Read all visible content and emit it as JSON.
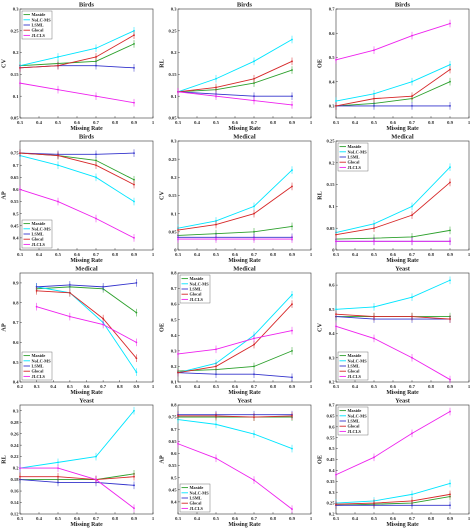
{
  "legend_labels": [
    "Maxide",
    "NoLC-MS",
    "LSML",
    "Glocal",
    "JLCLS"
  ],
  "colors": {
    "Maxide": "#2ca02c",
    "NoLC-MS": "#00e5ff",
    "LSML": "#3333cc",
    "Glocal": "#d62728",
    "JLCLS": "#ee22ee"
  },
  "chart_data": [
    {
      "type": "line",
      "title": "Birds",
      "xlabel": "Missing Rate",
      "ylabel": "CV",
      "x": [
        0.3,
        0.5,
        0.7,
        0.9
      ],
      "xlim": [
        0.3,
        1
      ],
      "ylim": [
        0.05,
        0.3
      ],
      "xticks": [
        "0.3",
        "0.4",
        "0.5",
        "0.6",
        "0.7",
        "0.8",
        "0.9",
        "1"
      ],
      "yticks": [
        "0.05",
        "0.1",
        "0.15",
        "0.2",
        "0.25",
        "0.3"
      ],
      "legend": "top-left",
      "grid": false,
      "series": [
        {
          "name": "Maxide",
          "values": [
            0.17,
            0.175,
            0.18,
            0.22
          ]
        },
        {
          "name": "NoLC-MS",
          "values": [
            0.17,
            0.19,
            0.21,
            0.25
          ]
        },
        {
          "name": "LSML",
          "values": [
            0.165,
            0.17,
            0.17,
            0.165
          ]
        },
        {
          "name": "Glocal",
          "values": [
            0.165,
            0.17,
            0.19,
            0.24
          ]
        },
        {
          "name": "JLCLS",
          "values": [
            0.13,
            0.115,
            0.1,
            0.085
          ]
        }
      ]
    },
    {
      "type": "line",
      "title": "Birds",
      "xlabel": "Missing Rate",
      "ylabel": "RL",
      "x": [
        0.3,
        0.5,
        0.7,
        0.9
      ],
      "xlim": [
        0.3,
        1
      ],
      "ylim": [
        0.05,
        0.3
      ],
      "xticks": [
        "0.3",
        "0.4",
        "0.5",
        "0.6",
        "0.7",
        "0.8",
        "0.9",
        "1"
      ],
      "yticks": [
        "0.05",
        "0.1",
        "0.15",
        "0.2",
        "0.25",
        "0.3"
      ],
      "legend": "none",
      "grid": false,
      "series": [
        {
          "name": "Maxide",
          "values": [
            0.11,
            0.115,
            0.13,
            0.16
          ]
        },
        {
          "name": "NoLC-MS",
          "values": [
            0.11,
            0.14,
            0.18,
            0.23
          ]
        },
        {
          "name": "LSML",
          "values": [
            0.11,
            0.105,
            0.1,
            0.1
          ]
        },
        {
          "name": "Glocal",
          "values": [
            0.11,
            0.12,
            0.14,
            0.18
          ]
        },
        {
          "name": "JLCLS",
          "values": [
            0.11,
            0.1,
            0.09,
            0.08
          ]
        }
      ]
    },
    {
      "type": "line",
      "title": "Birds",
      "xlabel": "Missing Rate",
      "ylabel": "OE",
      "x": [
        0.3,
        0.5,
        0.7,
        0.9
      ],
      "xlim": [
        0.3,
        1
      ],
      "ylim": [
        0.25,
        0.7
      ],
      "xticks": [
        "0.3",
        "0.4",
        "0.5",
        "0.6",
        "0.7",
        "0.8",
        "0.9",
        "1"
      ],
      "yticks": [
        "0.3",
        "0.4",
        "0.5",
        "0.6",
        "0.7"
      ],
      "legend": "none",
      "grid": false,
      "series": [
        {
          "name": "Maxide",
          "values": [
            0.3,
            0.31,
            0.33,
            0.4
          ]
        },
        {
          "name": "NoLC-MS",
          "values": [
            0.32,
            0.35,
            0.4,
            0.47
          ]
        },
        {
          "name": "LSML",
          "values": [
            0.3,
            0.3,
            0.3,
            0.3
          ]
        },
        {
          "name": "Glocal",
          "values": [
            0.3,
            0.33,
            0.34,
            0.45
          ]
        },
        {
          "name": "JLCLS",
          "values": [
            0.49,
            0.53,
            0.59,
            0.64
          ]
        }
      ]
    },
    {
      "type": "line",
      "title": "Birds",
      "xlabel": "Missing Rate",
      "ylabel": "AP",
      "x": [
        0.3,
        0.5,
        0.7,
        0.9
      ],
      "xlim": [
        0.3,
        1
      ],
      "ylim": [
        0.35,
        0.8
      ],
      "xticks": [
        "0.3",
        "0.4",
        "0.5",
        "0.6",
        "0.7",
        "0.8",
        "0.9",
        "1"
      ],
      "yticks": [
        "0.4",
        "0.45",
        "0.5",
        "0.55",
        "0.6",
        "0.65",
        "0.7",
        "0.75"
      ],
      "legend": "bottom-left",
      "grid": false,
      "series": [
        {
          "name": "Maxide",
          "values": [
            0.75,
            0.74,
            0.72,
            0.64
          ]
        },
        {
          "name": "NoLC-MS",
          "values": [
            0.74,
            0.7,
            0.65,
            0.55
          ]
        },
        {
          "name": "LSML",
          "values": [
            0.75,
            0.745,
            0.745,
            0.75
          ]
        },
        {
          "name": "Glocal",
          "values": [
            0.75,
            0.74,
            0.7,
            0.62
          ]
        },
        {
          "name": "JLCLS",
          "values": [
            0.6,
            0.55,
            0.48,
            0.4
          ]
        }
      ]
    },
    {
      "type": "line",
      "title": "Medical",
      "xlabel": "Missing Rate",
      "ylabel": "CV",
      "x": [
        0.3,
        0.5,
        0.7,
        0.9
      ],
      "xlim": [
        0.3,
        1
      ],
      "ylim": [
        0,
        0.3
      ],
      "xticks": [
        "0.3",
        "0.4",
        "0.5",
        "0.6",
        "0.7",
        "0.8",
        "0.9",
        "1"
      ],
      "yticks": [
        "0",
        "0.05",
        "0.1",
        "0.15",
        "0.2",
        "0.25",
        "0.3"
      ],
      "legend": "none",
      "grid": false,
      "series": [
        {
          "name": "Maxide",
          "values": [
            0.04,
            0.045,
            0.05,
            0.065
          ]
        },
        {
          "name": "NoLC-MS",
          "values": [
            0.06,
            0.08,
            0.12,
            0.22
          ]
        },
        {
          "name": "LSML",
          "values": [
            0.035,
            0.035,
            0.035,
            0.035
          ]
        },
        {
          "name": "Glocal",
          "values": [
            0.055,
            0.07,
            0.1,
            0.175
          ]
        },
        {
          "name": "JLCLS",
          "values": [
            0.03,
            0.03,
            0.03,
            0.03
          ]
        }
      ]
    },
    {
      "type": "line",
      "title": "Medical",
      "xlabel": "Missing Rate",
      "ylabel": "RL",
      "x": [
        0.3,
        0.5,
        0.7,
        0.9
      ],
      "xlim": [
        0.3,
        1
      ],
      "ylim": [
        0,
        0.25
      ],
      "xticks": [
        "0.3",
        "0.4",
        "0.5",
        "0.6",
        "0.7",
        "0.8",
        "0.9",
        "1"
      ],
      "yticks": [
        "0",
        "0.05",
        "0.1",
        "0.15",
        "0.2",
        "0.25"
      ],
      "legend": "top-left",
      "grid": false,
      "series": [
        {
          "name": "Maxide",
          "values": [
            0.025,
            0.027,
            0.03,
            0.045
          ]
        },
        {
          "name": "NoLC-MS",
          "values": [
            0.04,
            0.06,
            0.1,
            0.19
          ]
        },
        {
          "name": "LSML",
          "values": [
            0.02,
            0.02,
            0.02,
            0.02
          ]
        },
        {
          "name": "Glocal",
          "values": [
            0.035,
            0.05,
            0.08,
            0.155
          ]
        },
        {
          "name": "JLCLS",
          "values": [
            0.02,
            0.02,
            0.02,
            0.02
          ]
        }
      ]
    },
    {
      "type": "line",
      "title": "Medical",
      "xlabel": "Missing Rate",
      "ylabel": "AP",
      "x": [
        0.3,
        0.5,
        0.7,
        0.9
      ],
      "xlim": [
        0.2,
        1
      ],
      "ylim": [
        0.4,
        0.95
      ],
      "xticks": [
        "0.2",
        "0.3",
        "0.4",
        "0.5",
        "0.6",
        "0.7",
        "0.8",
        "0.9",
        "1"
      ],
      "yticks": [
        "0.4",
        "0.5",
        "0.6",
        "0.7",
        "0.8",
        "0.9"
      ],
      "legend": "bottom-left",
      "grid": false,
      "series": [
        {
          "name": "Maxide",
          "values": [
            0.87,
            0.88,
            0.87,
            0.75
          ]
        },
        {
          "name": "NoLC-MS",
          "values": [
            0.88,
            0.85,
            0.7,
            0.45
          ]
        },
        {
          "name": "LSML",
          "values": [
            0.88,
            0.89,
            0.88,
            0.9
          ]
        },
        {
          "name": "Glocal",
          "values": [
            0.86,
            0.85,
            0.72,
            0.52
          ]
        },
        {
          "name": "JLCLS",
          "values": [
            0.78,
            0.73,
            0.69,
            0.6
          ]
        }
      ]
    },
    {
      "type": "line",
      "title": "Medical",
      "xlabel": "Missing Rate",
      "ylabel": "OE",
      "x": [
        0.3,
        0.5,
        0.7,
        0.9
      ],
      "xlim": [
        0.3,
        1
      ],
      "ylim": [
        0.1,
        0.8
      ],
      "xticks": [
        "0.3",
        "0.4",
        "0.5",
        "0.6",
        "0.7",
        "0.8",
        "0.9",
        "1"
      ],
      "yticks": [
        "0.1",
        "0.2",
        "0.3",
        "0.4",
        "0.5",
        "0.6",
        "0.7",
        "0.8"
      ],
      "legend": "top-left",
      "grid": false,
      "series": [
        {
          "name": "Maxide",
          "values": [
            0.17,
            0.18,
            0.2,
            0.3
          ]
        },
        {
          "name": "NoLC-MS",
          "values": [
            0.16,
            0.22,
            0.4,
            0.66
          ]
        },
        {
          "name": "LSML",
          "values": [
            0.16,
            0.15,
            0.15,
            0.13
          ]
        },
        {
          "name": "Glocal",
          "values": [
            0.16,
            0.2,
            0.34,
            0.6
          ]
        },
        {
          "name": "JLCLS",
          "values": [
            0.28,
            0.31,
            0.38,
            0.43
          ]
        }
      ]
    },
    {
      "type": "line",
      "title": "Yeast",
      "xlabel": "Missing Rate",
      "ylabel": "CV",
      "x": [
        0.3,
        0.5,
        0.7,
        0.9
      ],
      "xlim": [
        0.3,
        1
      ],
      "ylim": [
        0.2,
        0.65
      ],
      "xticks": [
        "0.3",
        "0.4",
        "0.5",
        "0.6",
        "0.7",
        "0.8",
        "0.9",
        "1"
      ],
      "yticks": [
        "0.2",
        "0.3",
        "0.4",
        "0.5",
        "0.6"
      ],
      "legend": "bottom-left",
      "grid": false,
      "series": [
        {
          "name": "Maxide",
          "values": [
            0.47,
            0.47,
            0.47,
            0.47
          ]
        },
        {
          "name": "NoLC-MS",
          "values": [
            0.5,
            0.51,
            0.55,
            0.62
          ]
        },
        {
          "name": "LSML",
          "values": [
            0.47,
            0.46,
            0.46,
            0.46
          ]
        },
        {
          "name": "Glocal",
          "values": [
            0.48,
            0.47,
            0.47,
            0.46
          ]
        },
        {
          "name": "JLCLS",
          "values": [
            0.43,
            0.38,
            0.3,
            0.21
          ]
        }
      ]
    },
    {
      "type": "line",
      "title": "Yeast",
      "xlabel": "Missing Rate",
      "ylabel": "RL",
      "x": [
        0.3,
        0.5,
        0.7,
        0.9
      ],
      "xlim": [
        0.3,
        1
      ],
      "ylim": [
        0.12,
        0.31
      ],
      "xticks": [
        "0.3",
        "0.4",
        "0.5",
        "0.6",
        "0.7",
        "0.8",
        "0.9",
        "1"
      ],
      "yticks": [
        "0.12",
        "0.14",
        "0.16",
        "0.18",
        "0.2",
        "0.22",
        "0.24",
        "0.26",
        "0.28",
        "0.3"
      ],
      "legend": "none",
      "grid": false,
      "series": [
        {
          "name": "Maxide",
          "values": [
            0.18,
            0.18,
            0.18,
            0.19
          ]
        },
        {
          "name": "NoLC-MS",
          "values": [
            0.2,
            0.21,
            0.22,
            0.3
          ]
        },
        {
          "name": "LSML",
          "values": [
            0.18,
            0.175,
            0.175,
            0.17
          ]
        },
        {
          "name": "Glocal",
          "values": [
            0.185,
            0.185,
            0.18,
            0.185
          ]
        },
        {
          "name": "JLCLS",
          "values": [
            0.2,
            0.2,
            0.18,
            0.13
          ]
        }
      ]
    },
    {
      "type": "line",
      "title": "Yeast",
      "xlabel": "Missing Rate",
      "ylabel": "AP",
      "x": [
        0.3,
        0.5,
        0.7,
        0.9
      ],
      "xlim": [
        0.3,
        1
      ],
      "ylim": [
        0.35,
        0.8
      ],
      "xticks": [
        "0.3",
        "0.4",
        "0.5",
        "0.6",
        "0.7",
        "0.8",
        "0.9",
        "1"
      ],
      "yticks": [
        "0.4",
        "0.45",
        "0.5",
        "0.55",
        "0.6",
        "0.65",
        "0.7",
        "0.75",
        "0.8"
      ],
      "legend": "bottom-left",
      "grid": false,
      "series": [
        {
          "name": "Maxide",
          "values": [
            0.75,
            0.75,
            0.75,
            0.75
          ]
        },
        {
          "name": "NoLC-MS",
          "values": [
            0.74,
            0.72,
            0.68,
            0.62
          ]
        },
        {
          "name": "LSML",
          "values": [
            0.76,
            0.76,
            0.76,
            0.76
          ]
        },
        {
          "name": "Glocal",
          "values": [
            0.755,
            0.755,
            0.75,
            0.755
          ]
        },
        {
          "name": "JLCLS",
          "values": [
            0.64,
            0.58,
            0.49,
            0.37
          ]
        }
      ]
    },
    {
      "type": "line",
      "title": "Yeast",
      "xlabel": "Missing Rate",
      "ylabel": "OE",
      "x": [
        0.3,
        0.5,
        0.7,
        0.9
      ],
      "xlim": [
        0.3,
        1
      ],
      "ylim": [
        0.2,
        0.7
      ],
      "xticks": [
        "0.3",
        "0.4",
        "0.5",
        "0.6",
        "0.7",
        "0.8",
        "0.9",
        "1"
      ],
      "yticks": [
        "0.2",
        "0.25",
        "0.3",
        "0.35",
        "0.4",
        "0.45",
        "0.5",
        "0.55",
        "0.6",
        "0.65",
        "0.7"
      ],
      "legend": "top-left",
      "grid": false,
      "series": [
        {
          "name": "Maxide",
          "values": [
            0.24,
            0.245,
            0.25,
            0.28
          ]
        },
        {
          "name": "NoLC-MS",
          "values": [
            0.25,
            0.26,
            0.29,
            0.34
          ]
        },
        {
          "name": "LSML",
          "values": [
            0.24,
            0.24,
            0.24,
            0.24
          ]
        },
        {
          "name": "Glocal",
          "values": [
            0.245,
            0.25,
            0.26,
            0.29
          ]
        },
        {
          "name": "JLCLS",
          "values": [
            0.38,
            0.46,
            0.57,
            0.67
          ]
        }
      ]
    }
  ]
}
